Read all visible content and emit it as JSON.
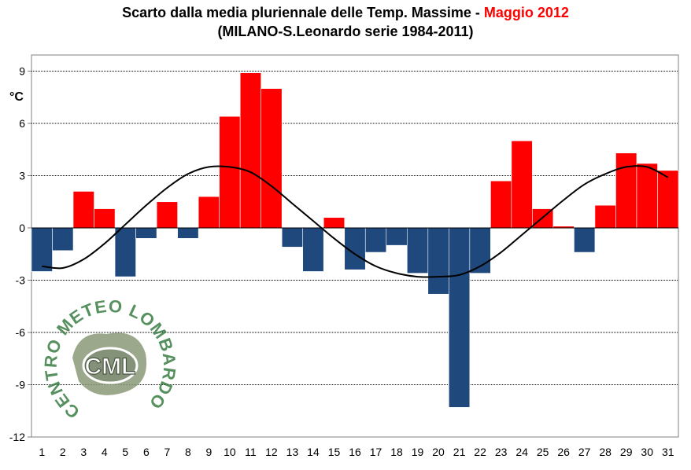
{
  "chart_data": {
    "type": "bar",
    "title": "Scarto dalla media pluriennale delle Temp. Massime - ",
    "title_accent": "Maggio 2012",
    "subtitle": "(MILANO-S.Leonardo serie 1984-2011)",
    "xlabel": "",
    "ylabel": "°C",
    "ylim": [
      -12,
      10.2
    ],
    "yticks": [
      9,
      6,
      3,
      0,
      -3,
      -6,
      -9,
      -12
    ],
    "grid": true,
    "categories": [
      "1",
      "2",
      "3",
      "4",
      "5",
      "6",
      "7",
      "8",
      "9",
      "10",
      "11",
      "12",
      "13",
      "14",
      "15",
      "16",
      "17",
      "18",
      "19",
      "20",
      "21",
      "22",
      "23",
      "24",
      "25",
      "26",
      "27",
      "28",
      "29",
      "30",
      "31"
    ],
    "values": [
      -2.5,
      -1.3,
      2.1,
      1.1,
      -2.8,
      -0.6,
      1.5,
      -0.6,
      1.8,
      6.4,
      8.9,
      8.0,
      -1.1,
      -2.5,
      0.6,
      -2.4,
      -1.4,
      -1.0,
      -2.6,
      -3.8,
      -10.3,
      -2.6,
      2.7,
      5.0,
      1.1,
      0.1,
      -1.4,
      1.3,
      4.3,
      3.7,
      3.3
    ],
    "trend": [
      -2.2,
      -2.3,
      -1.8,
      -0.9,
      0.2,
      1.3,
      2.3,
      3.1,
      3.5,
      3.5,
      3.2,
      2.4,
      1.4,
      0.4,
      -0.6,
      -1.5,
      -2.2,
      -2.6,
      -2.8,
      -2.8,
      -2.7,
      -2.2,
      -1.4,
      -0.4,
      0.6,
      1.6,
      2.5,
      3.1,
      3.5,
      3.5,
      2.9
    ],
    "colors": {
      "positive": "#ff0000",
      "negative": "#1f497d",
      "trend": "#000000",
      "grid": "#000000"
    }
  },
  "watermark": {
    "text_top": "CENTRO METEO LOMBARDO",
    "center": "CML",
    "color": "#3a7d44"
  }
}
